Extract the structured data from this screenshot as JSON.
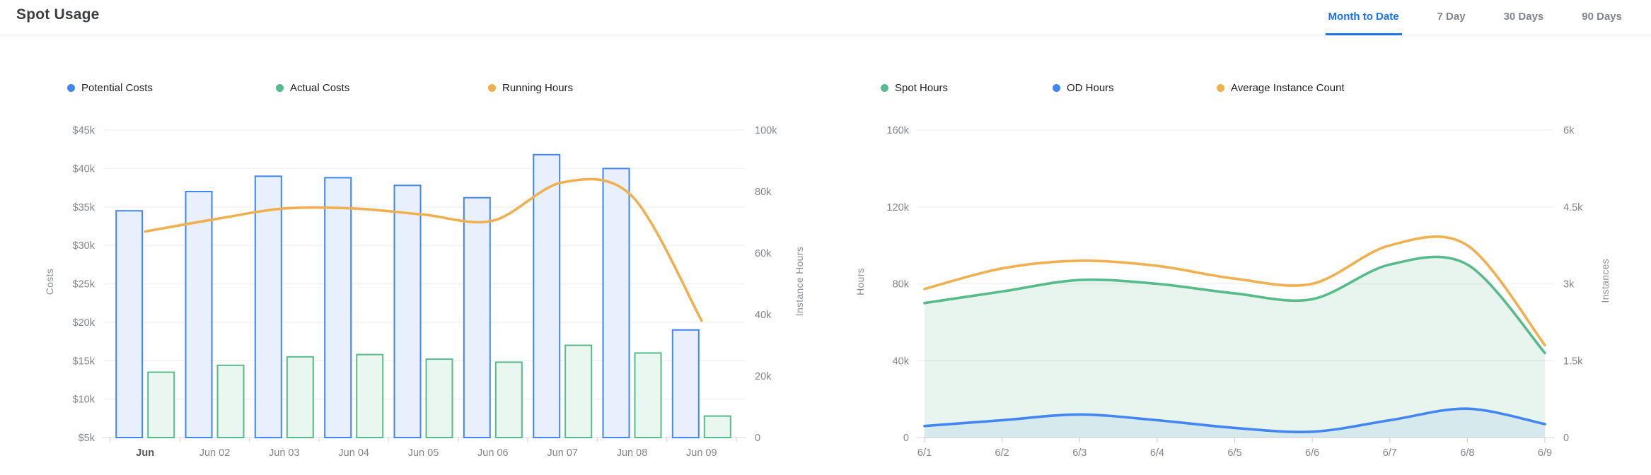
{
  "header": {
    "title": "Spot Usage",
    "tabs": [
      {
        "label": "Month to Date",
        "active": true
      },
      {
        "label": "7 Day",
        "active": false
      },
      {
        "label": "30 Days",
        "active": false
      },
      {
        "label": "90 Days",
        "active": false
      }
    ]
  },
  "colors": {
    "accent_blue": "#4285f4",
    "green": "#57bb8a",
    "orange": "#f1b04f",
    "active_tab_blue": "#1a73e8",
    "inactive_tab_gray": "#80868b",
    "blue_bar_fill": "#e8f0fe",
    "green_bar_fill": "#eaf6f0",
    "green_area_fill": "rgba(87,187,138,0.14)",
    "blue_area_fill": "rgba(66,133,244,0.10)",
    "gridline": "#f1f2f4",
    "axis_line": "#e3e6e8",
    "axis_text": "#80868c"
  },
  "chart_data": [
    {
      "type": "bar",
      "name": "costs-and-running-hours",
      "legend": [
        {
          "label": "Potential Costs",
          "color": "#4285f4"
        },
        {
          "label": "Actual Costs",
          "color": "#57bb8a"
        },
        {
          "label": "Running Hours",
          "color": "#f1b04f"
        }
      ],
      "categories": [
        "Jun",
        "Jun 02",
        "Jun 03",
        "Jun 04",
        "Jun 05",
        "Jun 06",
        "Jun 07",
        "Jun 08",
        "Jun 09"
      ],
      "series": [
        {
          "name": "Potential Costs",
          "kind": "bar",
          "axis": "left",
          "color": "#4285f4",
          "fill": "#e8f0fe",
          "values": [
            34500,
            37000,
            39000,
            38800,
            37800,
            36200,
            41800,
            40000,
            19000
          ]
        },
        {
          "name": "Actual Costs",
          "kind": "bar",
          "axis": "left",
          "color": "#57bb8a",
          "fill": "#eaf6f0",
          "values": [
            13500,
            14400,
            15500,
            15800,
            15200,
            14800,
            17000,
            16000,
            7800
          ]
        },
        {
          "name": "Running Hours",
          "kind": "line",
          "axis": "right",
          "color": "#f1b04f",
          "values": [
            67000,
            71000,
            74500,
            74500,
            72500,
            70500,
            83000,
            78500,
            38000
          ]
        }
      ],
      "left_axis": {
        "name": "Costs",
        "min": 5000,
        "max": 45000,
        "tick_labels": [
          "$45k",
          "$40k",
          "$35k",
          "$30k",
          "$25k",
          "$20k",
          "$15k",
          "$10k",
          "$5k"
        ]
      },
      "right_axis": {
        "name": "Instance Hours",
        "min": 0,
        "max": 100000,
        "tick_labels": [
          "100k",
          "80k",
          "60k",
          "40k",
          "20k",
          "0"
        ]
      },
      "grid": true,
      "legend_position": "top"
    },
    {
      "type": "area",
      "name": "hours-and-instance-count",
      "legend": [
        {
          "label": "Spot Hours",
          "color": "#57bb8a"
        },
        {
          "label": "OD Hours",
          "color": "#4285f4"
        },
        {
          "label": "Average Instance Count",
          "color": "#f1b04f"
        }
      ],
      "categories": [
        "6/1",
        "6/2",
        "6/3",
        "6/4",
        "6/5",
        "6/6",
        "6/7",
        "6/8",
        "6/9"
      ],
      "series": [
        {
          "name": "Spot Hours",
          "kind": "area",
          "axis": "left",
          "color": "#57bb8a",
          "fill": "rgba(87,187,138,0.14)",
          "values": [
            70000,
            76000,
            82000,
            80000,
            75000,
            72000,
            90000,
            90000,
            44000
          ]
        },
        {
          "name": "OD Hours",
          "kind": "area",
          "axis": "left",
          "color": "#4285f4",
          "fill": "rgba(66,133,244,0.10)",
          "values": [
            6000,
            9000,
            12000,
            9000,
            5000,
            3000,
            9000,
            15000,
            7000
          ]
        },
        {
          "name": "Average Instance Count",
          "kind": "line",
          "axis": "right",
          "color": "#f1b04f",
          "values": [
            2900,
            3300,
            3450,
            3350,
            3100,
            3000,
            3750,
            3750,
            1800
          ]
        }
      ],
      "left_axis": {
        "name": "Hours",
        "min": 0,
        "max": 160000,
        "tick_labels": [
          "160k",
          "120k",
          "80k",
          "40k",
          "0"
        ]
      },
      "right_axis": {
        "name": "Instances",
        "min": 0,
        "max": 6000,
        "tick_labels": [
          "6k",
          "4.5k",
          "3k",
          "1.5k",
          "0"
        ]
      },
      "grid": true,
      "legend_position": "top"
    }
  ]
}
